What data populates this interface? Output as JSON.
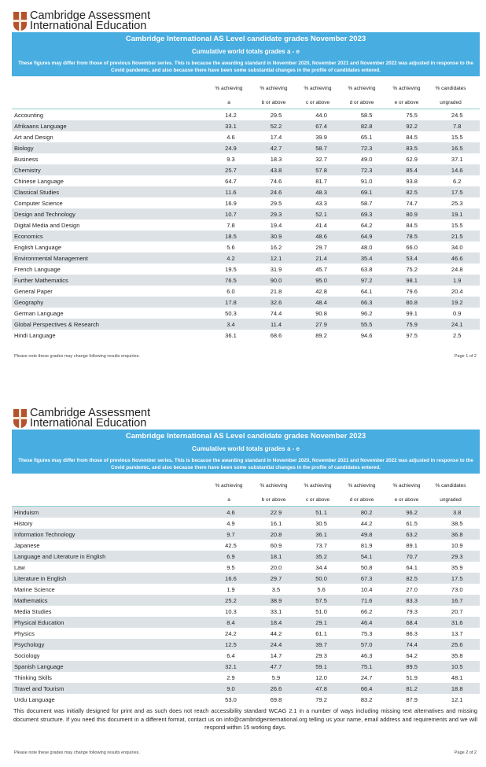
{
  "brand": {
    "line1": "Cambridge Assessment",
    "line2": "International Education"
  },
  "banner": {
    "title": "Cambridge International AS Level candidate grades November 2023",
    "subtitle": "Cumulative world totals grades a - e",
    "note": "These figures may differ from those of previous November series. This is because the awarding standard in November 2020, November 2021 and November 2022 was adjusted in response to the Covid pandemic, and also because there have been some substantial changes in the profile of candidates entered."
  },
  "columns": [
    {
      "l1": "% achieving",
      "l2": "a"
    },
    {
      "l1": "% achieving",
      "l2": "b or above"
    },
    {
      "l1": "% achieving",
      "l2": "c or above"
    },
    {
      "l1": "% achieving",
      "l2": "d or above"
    },
    {
      "l1": "% achieving",
      "l2": "e or above"
    },
    {
      "l1": "% candidates",
      "l2": "ungraded"
    }
  ],
  "pages": [
    {
      "footer_note": "Please note these grades may change following results enquiries.",
      "page_label": "Page 1 of 2",
      "rows": [
        [
          "Accounting",
          "14.2",
          "29.5",
          "44.0",
          "58.5",
          "75.5",
          "24.5"
        ],
        [
          "Afrikaans Language",
          "33.1",
          "52.2",
          "67.4",
          "82.8",
          "92.2",
          "7.8"
        ],
        [
          "Art and Design",
          "4.6",
          "17.4",
          "39.9",
          "65.1",
          "84.5",
          "15.5"
        ],
        [
          "Biology",
          "24.9",
          "42.7",
          "58.7",
          "72.3",
          "83.5",
          "16.5"
        ],
        [
          "Business",
          "9.3",
          "18.3",
          "32.7",
          "49.0",
          "62.9",
          "37.1"
        ],
        [
          "Chemistry",
          "25.7",
          "43.8",
          "57.8",
          "72.3",
          "85.4",
          "14.6"
        ],
        [
          "Chinese Language",
          "64.7",
          "74.6",
          "81.7",
          "91.0",
          "93.8",
          "6.2"
        ],
        [
          "Classical Studies",
          "11.6",
          "24.6",
          "48.3",
          "69.1",
          "82.5",
          "17.5"
        ],
        [
          "Computer Science",
          "16.9",
          "29.5",
          "43.3",
          "58.7",
          "74.7",
          "25.3"
        ],
        [
          "Design and Technology",
          "10.7",
          "29.3",
          "52.1",
          "69.3",
          "80.9",
          "19.1"
        ],
        [
          "Digital Media and Design",
          "7.8",
          "19.4",
          "41.4",
          "64.2",
          "84.5",
          "15.5"
        ],
        [
          "Economics",
          "18.5",
          "30.9",
          "48.6",
          "64.9",
          "78.5",
          "21.5"
        ],
        [
          "English Language",
          "5.6",
          "16.2",
          "29.7",
          "48.0",
          "66.0",
          "34.0"
        ],
        [
          "Environmental Management",
          "4.2",
          "12.1",
          "21.4",
          "35.4",
          "53.4",
          "46.6"
        ],
        [
          "French Language",
          "19.5",
          "31.9",
          "45.7",
          "63.8",
          "75.2",
          "24.8"
        ],
        [
          "Further Mathematics",
          "76.5",
          "90.0",
          "95.0",
          "97.2",
          "98.1",
          "1.9"
        ],
        [
          "General Paper",
          "6.0",
          "21.8",
          "42.8",
          "64.1",
          "79.6",
          "20.4"
        ],
        [
          "Geography",
          "17.8",
          "32.6",
          "48.4",
          "66.3",
          "80.8",
          "19.2"
        ],
        [
          "German Language",
          "50.3",
          "74.4",
          "90.8",
          "96.2",
          "99.1",
          "0.9"
        ],
        [
          "Global Perspectives & Research",
          "3.4",
          "11.4",
          "27.9",
          "55.5",
          "75.9",
          "24.1"
        ],
        [
          "Hindi Language",
          "36.1",
          "68.6",
          "89.2",
          "94.6",
          "97.5",
          "2.5"
        ]
      ]
    },
    {
      "footer_note": "Please note these grades may change following results enquiries.",
      "page_label": "Page 2 of 2",
      "disclaimer": "This document was initially designed for print and as such does not reach accessibility standard WCAG 2.1 in a number of ways including missing text alternatives and missing document structure. If you need this document in a different format, contact us on info@cambridgeinternational.org telling us your name, email address and requirements and we will respond within 15 working days.",
      "rows": [
        [
          "Hinduism",
          "4.6",
          "22.9",
          "51.1",
          "80.2",
          "96.2",
          "3.8"
        ],
        [
          "History",
          "4.9",
          "16.1",
          "30.5",
          "44.2",
          "61.5",
          "38.5"
        ],
        [
          "Information Technology",
          "9.7",
          "20.8",
          "36.1",
          "49.8",
          "63.2",
          "36.8"
        ],
        [
          "Japanese",
          "42.5",
          "60.9",
          "73.7",
          "81.9",
          "89.1",
          "10.9"
        ],
        [
          "Language and Literature in English",
          "6.9",
          "18.1",
          "35.2",
          "54.1",
          "70.7",
          "29.3"
        ],
        [
          "Law",
          "9.5",
          "20.0",
          "34.4",
          "50.8",
          "64.1",
          "35.9"
        ],
        [
          "Literature in English",
          "16.6",
          "29.7",
          "50.0",
          "67.3",
          "82.5",
          "17.5"
        ],
        [
          "Marine Science",
          "1.9",
          "3.5",
          "5.6",
          "10.4",
          "27.0",
          "73.0"
        ],
        [
          "Mathematics",
          "25.2",
          "38.9",
          "57.5",
          "71.6",
          "83.3",
          "16.7"
        ],
        [
          "Media Studies",
          "10.3",
          "33.1",
          "51.0",
          "66.2",
          "79.3",
          "20.7"
        ],
        [
          "Physical Education",
          "8.4",
          "18.4",
          "29.1",
          "46.4",
          "68.4",
          "31.6"
        ],
        [
          "Physics",
          "24.2",
          "44.2",
          "61.1",
          "75.3",
          "86.3",
          "13.7"
        ],
        [
          "Psychology",
          "12.5",
          "24.4",
          "39.7",
          "57.0",
          "74.4",
          "25.6"
        ],
        [
          "Sociology",
          "6.4",
          "14.7",
          "29.3",
          "46.3",
          "64.2",
          "35.8"
        ],
        [
          "Spanish Language",
          "32.1",
          "47.7",
          "59.1",
          "75.1",
          "89.5",
          "10.5"
        ],
        [
          "Thinking Skills",
          "2.9",
          "5.9",
          "12.0",
          "24.7",
          "51.9",
          "48.1"
        ],
        [
          "Travel and Tourism",
          "9.0",
          "26.6",
          "47.8",
          "66.4",
          "81.2",
          "18.8"
        ],
        [
          "Urdu Language",
          "53.0",
          "69.8",
          "79.2",
          "83.2",
          "87.9",
          "12.1"
        ]
      ]
    }
  ],
  "colors": {
    "banner": "#48ade0",
    "row_shade": "#dde2e6",
    "crest": "#b5522b"
  }
}
